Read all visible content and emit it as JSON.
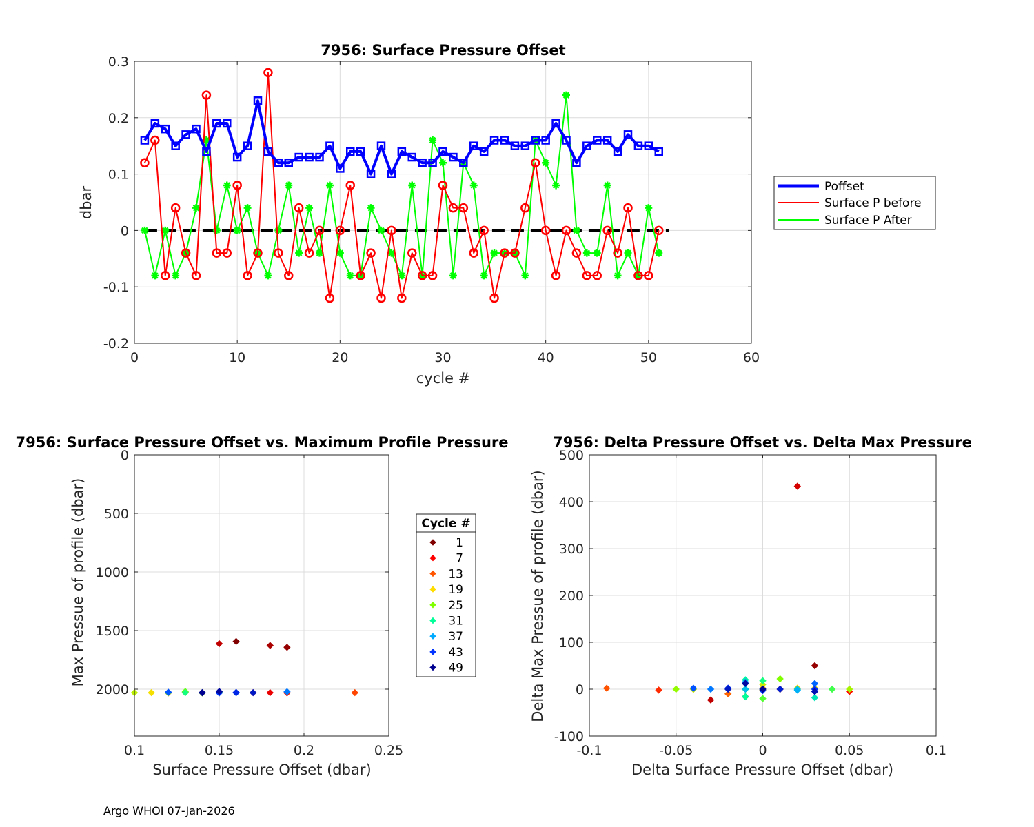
{
  "footer": "Argo WHOI 07-Jan-2026",
  "chart_data": [
    {
      "type": "line",
      "title": "7956: Surface Pressure Offset",
      "xlabel": "cycle #",
      "ylabel": "dbar",
      "xlim": [
        0,
        60
      ],
      "ylim": [
        -0.2,
        0.3
      ],
      "xticks": [
        0,
        10,
        20,
        30,
        40,
        50,
        60
      ],
      "yticks": [
        -0.2,
        -0.1,
        0,
        0.1,
        0.2,
        0.3
      ],
      "xtick_labels": [
        "0",
        "10",
        "20",
        "30",
        "40",
        "50",
        "60"
      ],
      "ytick_labels": [
        "-0.2",
        "-0.1",
        "0",
        "0.1",
        "0.2",
        "0.3"
      ],
      "grid": true,
      "legend_position": "right",
      "x": [
        1,
        2,
        3,
        4,
        5,
        6,
        7,
        8,
        9,
        10,
        11,
        12,
        13,
        14,
        15,
        16,
        17,
        18,
        19,
        20,
        21,
        22,
        23,
        24,
        25,
        26,
        27,
        28,
        29,
        30,
        31,
        32,
        33,
        34,
        35,
        36,
        37,
        38,
        39,
        40,
        41,
        42,
        43,
        44,
        45,
        46,
        47,
        48,
        49,
        50,
        51
      ],
      "series": [
        {
          "name": "Poffset",
          "color": "#0000ff",
          "marker": "square",
          "values": [
            0.16,
            0.19,
            0.18,
            0.15,
            0.17,
            0.18,
            0.14,
            0.19,
            0.19,
            0.13,
            0.15,
            0.23,
            0.14,
            0.12,
            0.12,
            0.13,
            0.13,
            0.13,
            0.15,
            0.11,
            0.14,
            0.14,
            0.1,
            0.15,
            0.1,
            0.14,
            0.13,
            0.12,
            0.12,
            0.14,
            0.13,
            0.12,
            0.15,
            0.14,
            0.16,
            0.16,
            0.15,
            0.15,
            0.16,
            0.16,
            0.19,
            0.16,
            0.12,
            0.15,
            0.16,
            0.16,
            0.14,
            0.17,
            0.15,
            0.15,
            0.14
          ]
        },
        {
          "name": "Surface P before",
          "color": "#ff0000",
          "marker": "circle",
          "values": [
            0.12,
            0.16,
            -0.08,
            0.04,
            -0.04,
            -0.08,
            0.24,
            -0.04,
            -0.04,
            0.08,
            -0.08,
            -0.04,
            0.28,
            -0.04,
            -0.08,
            0.04,
            -0.04,
            0.0,
            -0.12,
            0.0,
            0.08,
            -0.08,
            -0.04,
            -0.12,
            0.0,
            -0.12,
            -0.04,
            -0.08,
            -0.08,
            0.08,
            0.04,
            0.04,
            -0.04,
            0.0,
            -0.12,
            -0.04,
            -0.04,
            0.04,
            0.12,
            0.0,
            -0.08,
            0.0,
            -0.04,
            -0.08,
            -0.08,
            0.0,
            -0.04,
            0.04,
            -0.08,
            -0.08,
            0.0
          ]
        },
        {
          "name": "Surface P After",
          "color": "#00ff00",
          "marker": "star",
          "values": [
            0.0,
            -0.08,
            0.0,
            -0.08,
            -0.04,
            0.04,
            0.16,
            0.0,
            0.08,
            0.0,
            0.04,
            -0.04,
            -0.08,
            0.0,
            0.08,
            -0.04,
            0.04,
            -0.04,
            0.08,
            -0.04,
            -0.08,
            -0.08,
            0.04,
            0.0,
            -0.04,
            -0.08,
            0.08,
            -0.08,
            0.16,
            0.12,
            -0.08,
            0.12,
            0.08,
            -0.08,
            -0.04,
            -0.04,
            -0.04,
            -0.08,
            0.16,
            0.12,
            0.08,
            0.24,
            0.0,
            -0.04,
            -0.04,
            0.08,
            -0.08,
            -0.04,
            -0.08,
            0.04,
            -0.04
          ]
        }
      ],
      "reference_line": {
        "y": 0,
        "x_range": [
          1,
          52
        ],
        "style": "dashed",
        "color": "#000000"
      }
    },
    {
      "type": "scatter",
      "title": "7956: Surface Pressure Offset vs. Maximum Profile Pressure",
      "xlabel": "Surface Pressure Offset (dbar)",
      "ylabel": "Max Pressue of profile (dbar)",
      "xlim": [
        0.1,
        0.25
      ],
      "ylim": [
        0,
        2400
      ],
      "y_reversed": true,
      "xticks": [
        0.1,
        0.15,
        0.2,
        0.25
      ],
      "yticks": [
        0,
        500,
        1000,
        1500,
        2000
      ],
      "xtick_labels": [
        "0.1",
        "0.15",
        "0.2",
        "0.25"
      ],
      "ytick_labels": [
        "0",
        "500",
        "1000",
        "1500",
        "2000"
      ],
      "grid": true,
      "legend": {
        "title": "Cycle #",
        "entries": [
          "1",
          "7",
          "13",
          "19",
          "25",
          "31",
          "37",
          "43",
          "49"
        ],
        "colors": [
          "#800000",
          "#ff0000",
          "#ff5500",
          "#ffdd00",
          "#80ff00",
          "#00ff99",
          "#00aaff",
          "#0033ff",
          "#000090"
        ],
        "position": "right"
      },
      "points": [
        {
          "cycle": 1,
          "x": 0.16,
          "y": 1593
        },
        {
          "cycle": 2,
          "x": 0.19,
          "y": 1643
        },
        {
          "cycle": 3,
          "x": 0.18,
          "y": 1627
        },
        {
          "cycle": 4,
          "x": 0.15,
          "y": 1612
        },
        {
          "cycle": 5,
          "x": 0.17,
          "y": 2030
        },
        {
          "cycle": 6,
          "x": 0.18,
          "y": 2030
        },
        {
          "cycle": 7,
          "x": 0.14,
          "y": 2030
        },
        {
          "cycle": 8,
          "x": 0.19,
          "y": 2032
        },
        {
          "cycle": 9,
          "x": 0.19,
          "y": 2030
        },
        {
          "cycle": 10,
          "x": 0.13,
          "y": 2028
        },
        {
          "cycle": 12,
          "x": 0.23,
          "y": 2030
        },
        {
          "cycle": 14,
          "x": 0.12,
          "y": 2032
        },
        {
          "cycle": 19,
          "x": 0.15,
          "y": 2030
        },
        {
          "cycle": 20,
          "x": 0.11,
          "y": 2030
        },
        {
          "cycle": 21,
          "x": 0.14,
          "y": 2032
        },
        {
          "cycle": 23,
          "x": 0.1,
          "y": 2030
        },
        {
          "cycle": 24,
          "x": 0.15,
          "y": 2025
        },
        {
          "cycle": 26,
          "x": 0.14,
          "y": 2031
        },
        {
          "cycle": 27,
          "x": 0.13,
          "y": 2020
        },
        {
          "cycle": 29,
          "x": 0.12,
          "y": 2030
        },
        {
          "cycle": 30,
          "x": 0.14,
          "y": 2030
        },
        {
          "cycle": 31,
          "x": 0.13,
          "y": 2030
        },
        {
          "cycle": 33,
          "x": 0.15,
          "y": 2030
        },
        {
          "cycle": 35,
          "x": 0.16,
          "y": 2030
        },
        {
          "cycle": 38,
          "x": 0.15,
          "y": 2030
        },
        {
          "cycle": 41,
          "x": 0.19,
          "y": 2022
        },
        {
          "cycle": 42,
          "x": 0.16,
          "y": 2030
        },
        {
          "cycle": 43,
          "x": 0.12,
          "y": 2026
        },
        {
          "cycle": 44,
          "x": 0.15,
          "y": 2032
        },
        {
          "cycle": 45,
          "x": 0.16,
          "y": 2030
        },
        {
          "cycle": 46,
          "x": 0.16,
          "y": 2028
        },
        {
          "cycle": 47,
          "x": 0.14,
          "y": 2030
        },
        {
          "cycle": 48,
          "x": 0.17,
          "y": 2030
        },
        {
          "cycle": 50,
          "x": 0.15,
          "y": 2020
        },
        {
          "cycle": 51,
          "x": 0.14,
          "y": 2030
        }
      ]
    },
    {
      "type": "scatter",
      "title": "7956: Delta Pressure Offset vs. Delta Max Pressure",
      "xlabel": "Delta Surface Pressure Offset (dbar)",
      "ylabel": "Delta Max Pressue of profile (dbar)",
      "xlim": [
        -0.1,
        0.1
      ],
      "ylim": [
        -100,
        500
      ],
      "xticks": [
        -0.1,
        -0.05,
        0,
        0.05,
        0.1
      ],
      "yticks": [
        -100,
        0,
        100,
        200,
        300,
        400,
        500
      ],
      "xtick_labels": [
        "-0.1",
        "-0.05",
        "0",
        "0.05",
        "0.1"
      ],
      "ytick_labels": [
        "-100",
        "0",
        "100",
        "200",
        "300",
        "400",
        "500"
      ],
      "grid": true,
      "points": [
        {
          "cycle": 2,
          "x": 0.03,
          "y": 50
        },
        {
          "cycle": 3,
          "x": -0.01,
          "y": -16
        },
        {
          "cycle": 4,
          "x": -0.03,
          "y": -23
        },
        {
          "cycle": 5,
          "x": 0.02,
          "y": 433
        },
        {
          "cycle": 6,
          "x": 0.01,
          "y": 0
        },
        {
          "cycle": 7,
          "x": -0.04,
          "y": 0
        },
        {
          "cycle": 8,
          "x": 0.05,
          "y": -5
        },
        {
          "cycle": 10,
          "x": -0.06,
          "y": -2
        },
        {
          "cycle": 11,
          "x": 0.02,
          "y": 0
        },
        {
          "cycle": 13,
          "x": -0.09,
          "y": 2
        },
        {
          "cycle": 14,
          "x": -0.02,
          "y": -10
        },
        {
          "cycle": 15,
          "x": 0.0,
          "y": 0
        },
        {
          "cycle": 16,
          "x": 0.01,
          "y": 0
        },
        {
          "cycle": 17,
          "x": 0.0,
          "y": 2
        },
        {
          "cycle": 18,
          "x": 0.0,
          "y": -2
        },
        {
          "cycle": 19,
          "x": 0.02,
          "y": 2
        },
        {
          "cycle": 20,
          "x": -0.04,
          "y": 0
        },
        {
          "cycle": 21,
          "x": 0.03,
          "y": 2
        },
        {
          "cycle": 22,
          "x": 0.0,
          "y": 10
        },
        {
          "cycle": 23,
          "x": -0.04,
          "y": 0
        },
        {
          "cycle": 24,
          "x": 0.05,
          "y": 0
        },
        {
          "cycle": 25,
          "x": -0.05,
          "y": 0
        },
        {
          "cycle": 26,
          "x": 0.01,
          "y": 22
        },
        {
          "cycle": 27,
          "x": -0.01,
          "y": 0
        },
        {
          "cycle": 28,
          "x": 0.0,
          "y": -20
        },
        {
          "cycle": 29,
          "x": 0.04,
          "y": 0
        },
        {
          "cycle": 30,
          "x": -0.01,
          "y": 0
        },
        {
          "cycle": 31,
          "x": 0.0,
          "y": 18
        },
        {
          "cycle": 32,
          "x": -0.01,
          "y": -16
        },
        {
          "cycle": 33,
          "x": -0.01,
          "y": 20
        },
        {
          "cycle": 34,
          "x": 0.03,
          "y": -18
        },
        {
          "cycle": 35,
          "x": 0.02,
          "y": 0
        },
        {
          "cycle": 36,
          "x": 0.0,
          "y": 0
        },
        {
          "cycle": 37,
          "x": -0.01,
          "y": 0
        },
        {
          "cycle": 38,
          "x": 0.02,
          "y": -2
        },
        {
          "cycle": 39,
          "x": 0.0,
          "y": 0
        },
        {
          "cycle": 40,
          "x": -0.01,
          "y": 15
        },
        {
          "cycle": 41,
          "x": -0.03,
          "y": 0
        },
        {
          "cycle": 42,
          "x": 0.03,
          "y": 12
        },
        {
          "cycle": 43,
          "x": -0.04,
          "y": 2
        },
        {
          "cycle": 44,
          "x": 0.0,
          "y": -3
        },
        {
          "cycle": 45,
          "x": 0.03,
          "y": 0
        },
        {
          "cycle": 46,
          "x": -0.02,
          "y": 2
        },
        {
          "cycle": 47,
          "x": 0.01,
          "y": 0
        },
        {
          "cycle": 48,
          "x": -0.02,
          "y": 0
        },
        {
          "cycle": 49,
          "x": 0.03,
          "y": -5
        },
        {
          "cycle": 50,
          "x": -0.01,
          "y": 12
        },
        {
          "cycle": 51,
          "x": 0.0,
          "y": 0
        }
      ]
    }
  ]
}
